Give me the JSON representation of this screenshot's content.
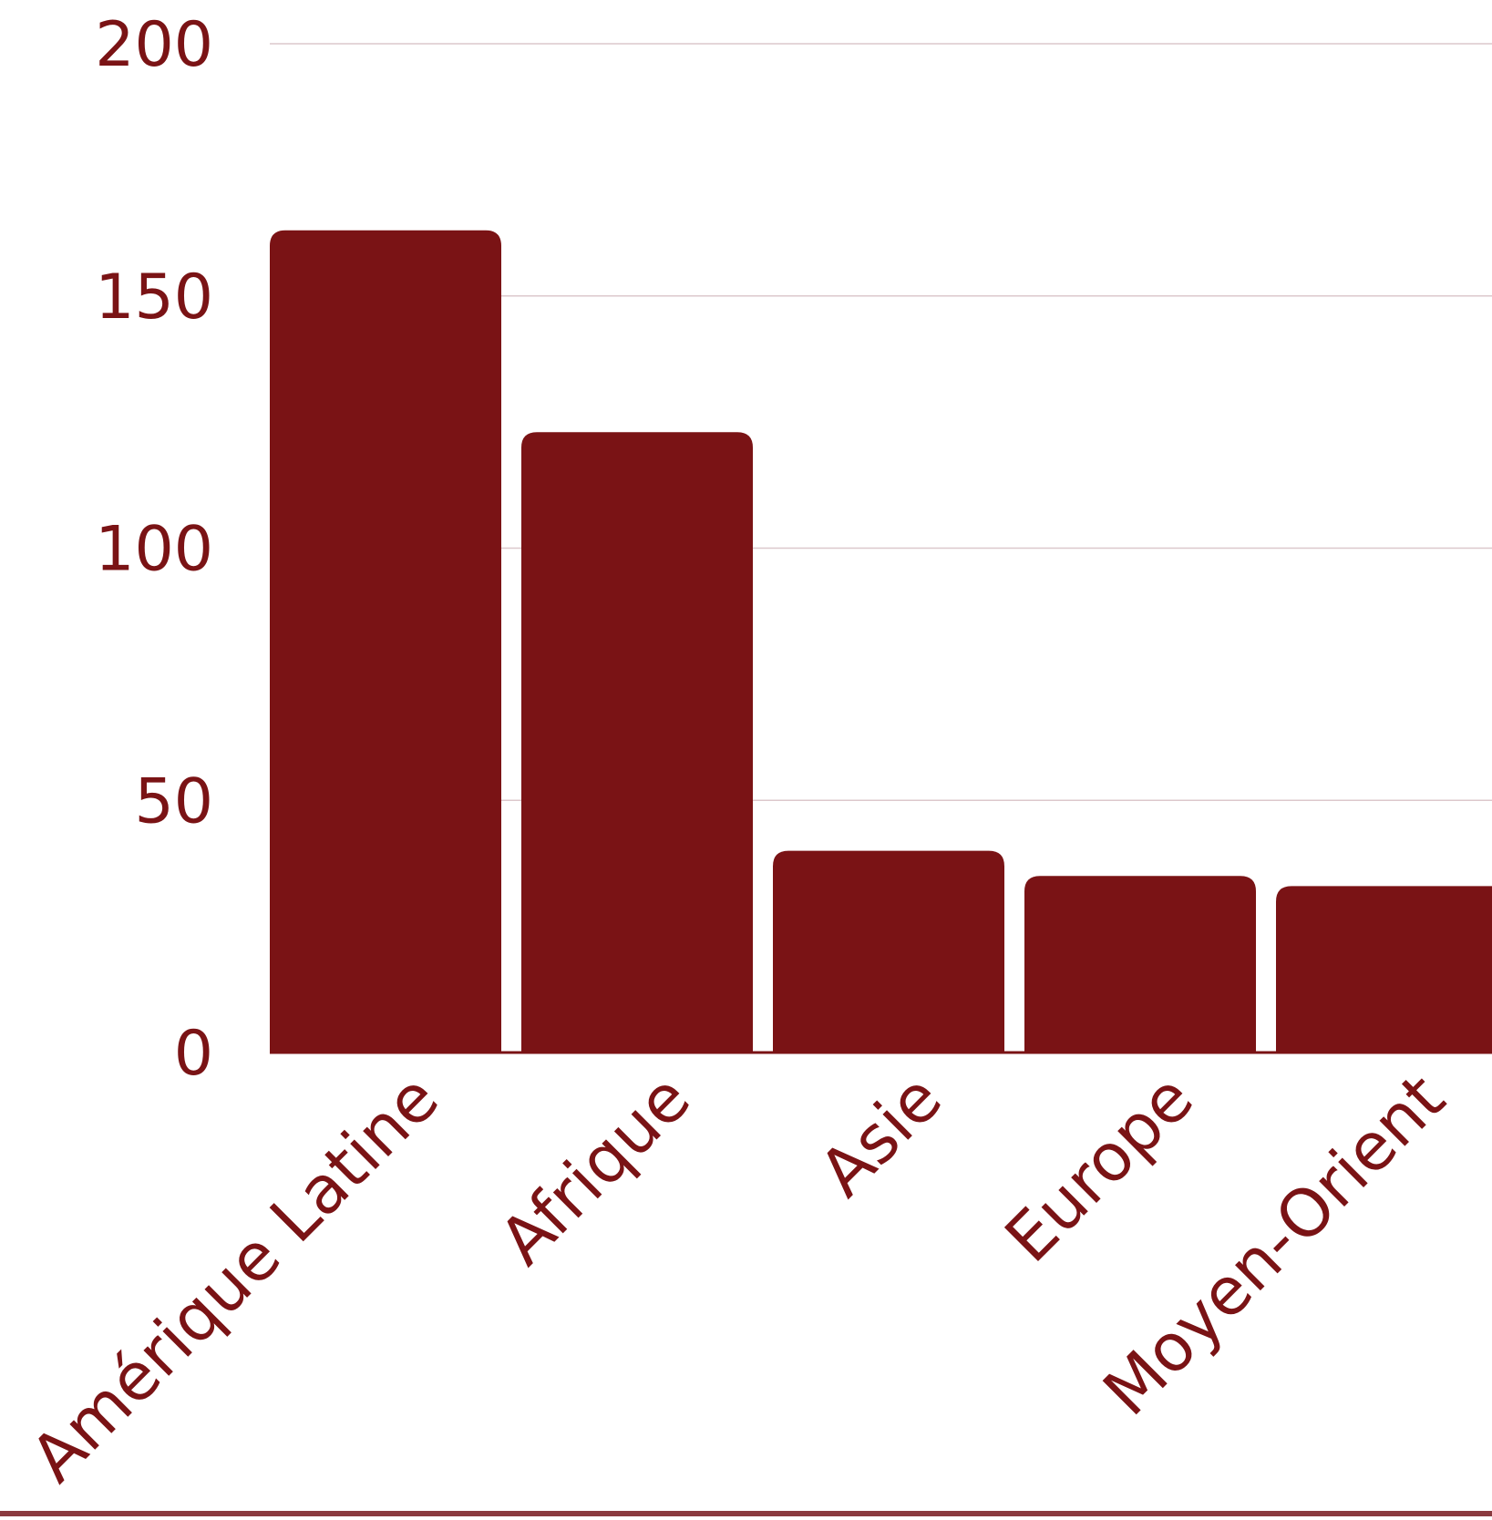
{
  "colors": {
    "bar": "#7a1315",
    "text": "#7a1315",
    "grid": "#dcc8cc",
    "background": "#ffffff",
    "bottom_strip": "#8a3a3f"
  },
  "chart_data": {
    "type": "bar",
    "categories": [
      "Amérique Latine",
      "Afrique",
      "Asie",
      "Europe",
      "Moyen-Orient"
    ],
    "values": [
      163,
      123,
      40,
      35,
      33
    ],
    "ylim": [
      0,
      200
    ],
    "yticks": [
      "0",
      "50",
      "100",
      "150",
      "200"
    ],
    "grid": true,
    "legend": "none"
  }
}
